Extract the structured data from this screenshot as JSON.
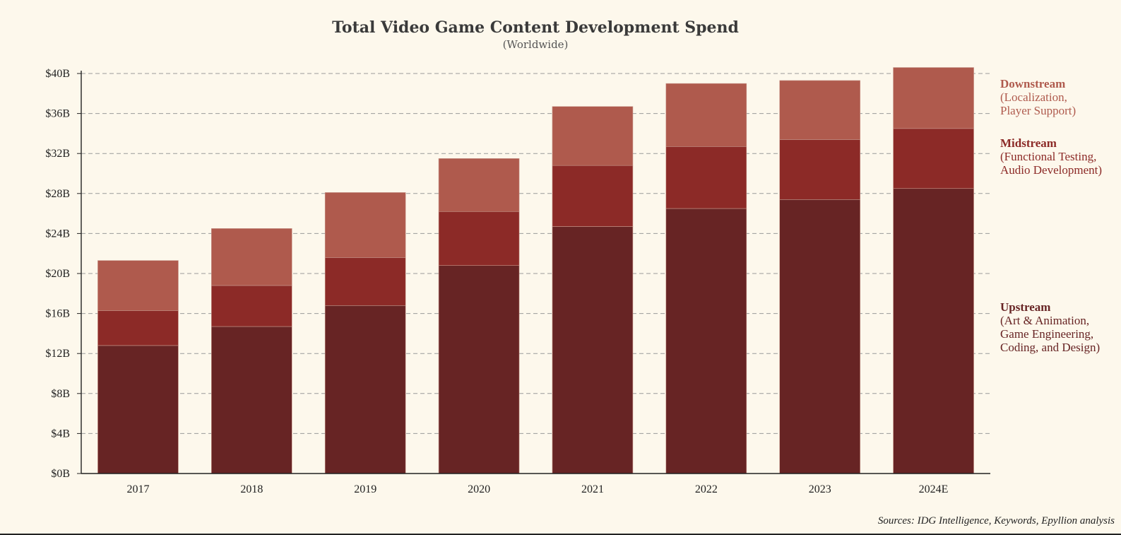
{
  "chart_data": {
    "type": "bar",
    "stacked": true,
    "title": "Total Video Game Content Development Spend",
    "subtitle": "(Worldwide)",
    "categories": [
      "2017",
      "2018",
      "2019",
      "2020",
      "2021",
      "2022",
      "2023",
      "2024E"
    ],
    "series": [
      {
        "name": "Upstream",
        "description": [
          "(Art & Animation,",
          "Game Engineering,",
          "Coding, and Design)"
        ],
        "color": "#672424",
        "values": [
          12.8,
          14.7,
          16.8,
          20.8,
          24.7,
          26.5,
          27.4,
          28.5
        ]
      },
      {
        "name": "Midstream",
        "description": [
          "(Functional Testing,",
          "Audio Development)"
        ],
        "color": "#8c2a27",
        "values": [
          3.5,
          4.1,
          4.8,
          5.4,
          6.1,
          6.2,
          6.0,
          6.0
        ]
      },
      {
        "name": "Downstream",
        "description": [
          "(Localization,",
          "Player Support)"
        ],
        "color": "#af5a4d",
        "values": [
          5.0,
          5.7,
          6.5,
          5.3,
          5.9,
          6.3,
          5.9,
          6.1
        ]
      }
    ],
    "ylim": [
      0,
      40
    ],
    "yticks": [
      0,
      4,
      8,
      12,
      16,
      20,
      24,
      28,
      32,
      36,
      40
    ],
    "ytick_labels": [
      "$0B",
      "$4B",
      "$8B",
      "$12B",
      "$16B",
      "$20B",
      "$24B",
      "$28B",
      "$32B",
      "$36B",
      "$40B"
    ],
    "grid": true,
    "legend_placement": "right",
    "xlabel": "",
    "ylabel": ""
  },
  "source_note": "Sources: IDG Intelligence, Keywords, Epyllion analysis",
  "colors": {
    "background": "#fdf8ec",
    "grid": "#9a9a9a",
    "axis": "#222222"
  }
}
